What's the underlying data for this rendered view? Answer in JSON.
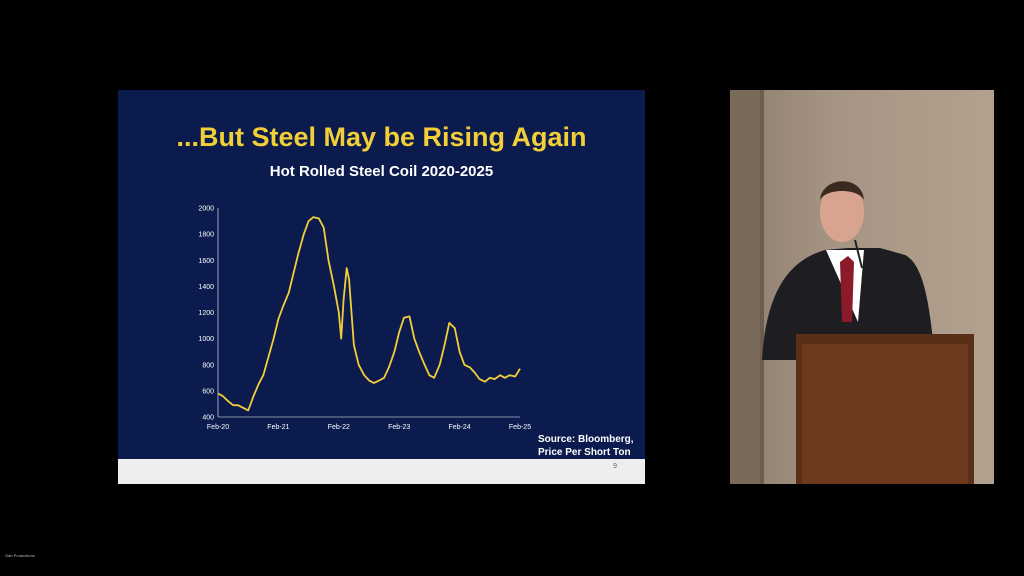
{
  "slide": {
    "title": "...But Steel May be Rising Again",
    "chart_title": "Hot Rolled Steel Coil 2020-2025",
    "source_line1": "Source: Bloomberg,",
    "source_line2": "Price Per Short Ton",
    "page_number": "9"
  },
  "credit": "Gab Productions",
  "colors": {
    "slide_bg": "#0b1b4e",
    "title": "#f2cf37",
    "line": "#f2cf37",
    "footer": "#eeeeee"
  },
  "chart_data": {
    "type": "line",
    "x_ticks": [
      "Feb-20",
      "Feb-21",
      "Feb-22",
      "Feb-23",
      "Feb-24",
      "Feb-25"
    ],
    "ylim": [
      400,
      2000
    ],
    "y_ticks": [
      400,
      600,
      800,
      1000,
      1200,
      1400,
      1600,
      1800,
      2000
    ],
    "grid": false,
    "series": [
      {
        "x": [
          2020.0,
          2020.08,
          2020.17,
          2020.25,
          2020.33,
          2020.42,
          2020.5,
          2020.58,
          2020.67,
          2020.75,
          2020.83,
          2020.92,
          2021.0,
          2021.08,
          2021.17,
          2021.25,
          2021.33,
          2021.42,
          2021.5,
          2021.58,
          2021.67,
          2021.75,
          2021.83,
          2021.92,
          2022.0,
          2022.04,
          2022.08,
          2022.13,
          2022.17,
          2022.21,
          2022.25,
          2022.33,
          2022.42,
          2022.5,
          2022.58,
          2022.67,
          2022.75,
          2022.83,
          2022.92,
          2023.0,
          2023.08,
          2023.17,
          2023.25,
          2023.33,
          2023.42,
          2023.5,
          2023.58,
          2023.67,
          2023.75,
          2023.83,
          2023.92,
          2024.0,
          2024.08,
          2024.17,
          2024.25,
          2024.33,
          2024.42,
          2024.5,
          2024.58,
          2024.67,
          2024.75,
          2024.83,
          2024.92,
          2025.0
        ],
        "values": [
          580,
          560,
          520,
          490,
          490,
          470,
          450,
          550,
          650,
          720,
          850,
          1000,
          1150,
          1250,
          1350,
          1500,
          1650,
          1800,
          1900,
          1930,
          1920,
          1850,
          1600,
          1400,
          1200,
          1000,
          1300,
          1540,
          1450,
          1200,
          950,
          800,
          720,
          680,
          660,
          680,
          700,
          780,
          900,
          1050,
          1160,
          1170,
          1000,
          900,
          800,
          720,
          700,
          800,
          950,
          1120,
          1080,
          900,
          800,
          780,
          740,
          690,
          670,
          700,
          690,
          720,
          700,
          720,
          710,
          770
        ]
      }
    ]
  }
}
